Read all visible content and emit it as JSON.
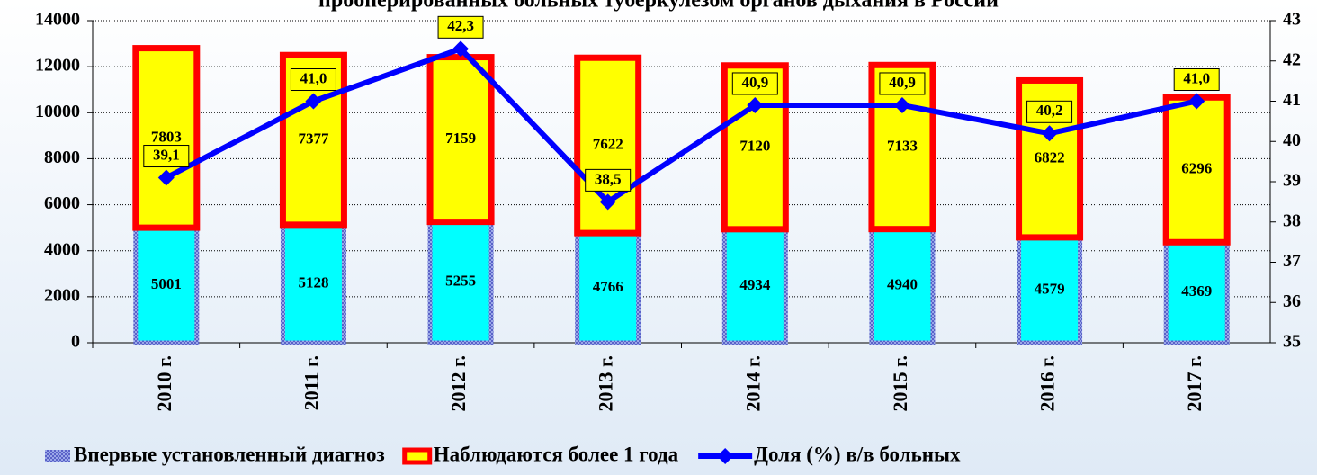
{
  "chart_data": {
    "type": "bar",
    "title": "прооперированных больных туберкулезом органов дыхания в России",
    "categories": [
      "2010 г.",
      "2011 г.",
      "2012 г.",
      "2013 г.",
      "2014 г.",
      "2015 г.",
      "2016 г.",
      "2017 г."
    ],
    "series": [
      {
        "name": "Впервые установленный диагноз",
        "color": "#00ffff",
        "values": [
          5001,
          5128,
          5255,
          4766,
          4934,
          4940,
          4579,
          4369
        ]
      },
      {
        "name": "Наблюдаются более 1 года",
        "color": "#ffff00",
        "values": [
          7803,
          7377,
          7159,
          7622,
          7120,
          7133,
          6822,
          6296
        ]
      },
      {
        "name": "Доля (%) в/в больных",
        "color": "#0000ff",
        "axis": "y2",
        "type": "line",
        "values": [
          39.1,
          41.0,
          42.3,
          38.5,
          40.9,
          40.9,
          40.2,
          41.0
        ],
        "value_labels": [
          "39,1",
          "41,0",
          "42,3",
          "38,5",
          "40,9",
          "40,9",
          "40,2",
          "41,0"
        ]
      }
    ],
    "ylim": [
      0,
      14000
    ],
    "yticks": [
      0,
      2000,
      4000,
      6000,
      8000,
      10000,
      12000,
      14000
    ],
    "y2lim": [
      35,
      43
    ],
    "y2ticks": [
      35,
      36,
      37,
      38,
      39,
      40,
      41,
      42,
      43
    ],
    "grid": true,
    "legend": "bottom"
  }
}
